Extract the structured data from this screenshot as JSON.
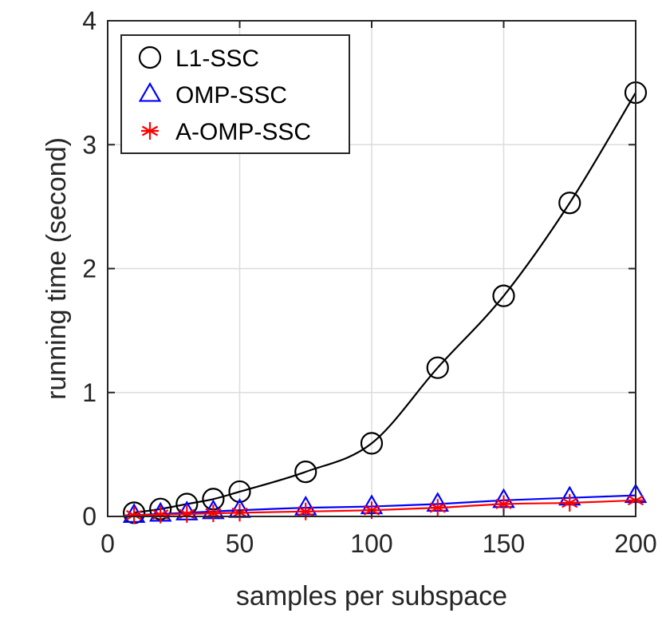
{
  "chart_data": {
    "type": "line",
    "title": "",
    "xlabel": "samples per subspace",
    "ylabel": "running time (second)",
    "xlim": [
      0,
      200
    ],
    "ylim": [
      0,
      4
    ],
    "xticks": [
      0,
      50,
      100,
      150,
      200
    ],
    "yticks": [
      0,
      1,
      2,
      3,
      4
    ],
    "grid": true,
    "legend_position": "top-left",
    "x": [
      10,
      20,
      30,
      40,
      50,
      75,
      100,
      125,
      150,
      175,
      200
    ],
    "series": [
      {
        "name": "L1-SSC",
        "color": "#000000",
        "marker": "circle",
        "values": [
          0.03,
          0.06,
          0.1,
          0.14,
          0.2,
          0.36,
          0.59,
          1.2,
          1.78,
          2.53,
          3.42
        ]
      },
      {
        "name": "OMP-SSC",
        "color": "#0000ff",
        "marker": "triangle",
        "values": [
          0.01,
          0.02,
          0.03,
          0.04,
          0.05,
          0.07,
          0.08,
          0.1,
          0.13,
          0.15,
          0.17
        ]
      },
      {
        "name": "A-OMP-SSC",
        "color": "#ff0000",
        "marker": "asterisk",
        "values": [
          0.01,
          0.015,
          0.02,
          0.025,
          0.03,
          0.04,
          0.05,
          0.07,
          0.1,
          0.11,
          0.13
        ]
      }
    ]
  }
}
